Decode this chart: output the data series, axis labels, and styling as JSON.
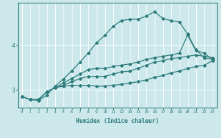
{
  "xlabel": "Humidex (Indice chaleur)",
  "bg_color": "#cce8ea",
  "line_color": "#2e7b7b",
  "grid_color": "#ffffff",
  "x_values": [
    0,
    1,
    2,
    3,
    4,
    5,
    6,
    7,
    8,
    9,
    10,
    11,
    12,
    13,
    14,
    15,
    16,
    17,
    18,
    19,
    20,
    21,
    22,
    23
  ],
  "line1": [
    2.85,
    2.78,
    2.76,
    2.88,
    3.08,
    3.24,
    3.42,
    3.62,
    3.82,
    4.05,
    4.22,
    4.42,
    4.55,
    4.58,
    4.58,
    4.65,
    4.75,
    4.6,
    4.55,
    4.52,
    4.25,
    3.9,
    3.72,
    3.68
  ],
  "line2": [
    2.85,
    2.78,
    2.78,
    2.95,
    3.05,
    3.08,
    3.1,
    3.1,
    3.1,
    3.08,
    3.08,
    3.1,
    3.12,
    3.15,
    3.18,
    3.22,
    3.28,
    3.32,
    3.38,
    3.42,
    3.48,
    3.52,
    3.55,
    3.65
  ],
  "line3": [
    2.85,
    2.78,
    2.78,
    2.95,
    3.05,
    3.1,
    3.18,
    3.25,
    3.3,
    3.3,
    3.3,
    3.35,
    3.4,
    3.42,
    3.48,
    3.55,
    3.62,
    3.65,
    3.7,
    3.72,
    3.75,
    3.78,
    3.75,
    3.72
  ],
  "line4": [
    2.85,
    2.78,
    2.78,
    2.95,
    3.05,
    3.15,
    3.25,
    3.35,
    3.45,
    3.48,
    3.48,
    3.52,
    3.55,
    3.58,
    3.62,
    3.68,
    3.72,
    3.75,
    3.78,
    3.82,
    4.22,
    3.88,
    3.82,
    3.68
  ],
  "ylim_min": 2.6,
  "ylim_max": 4.95,
  "yticks": [
    3,
    4
  ],
  "xticks": [
    0,
    1,
    2,
    3,
    4,
    5,
    6,
    7,
    8,
    9,
    10,
    11,
    12,
    13,
    14,
    15,
    16,
    17,
    18,
    19,
    20,
    21,
    22,
    23
  ]
}
